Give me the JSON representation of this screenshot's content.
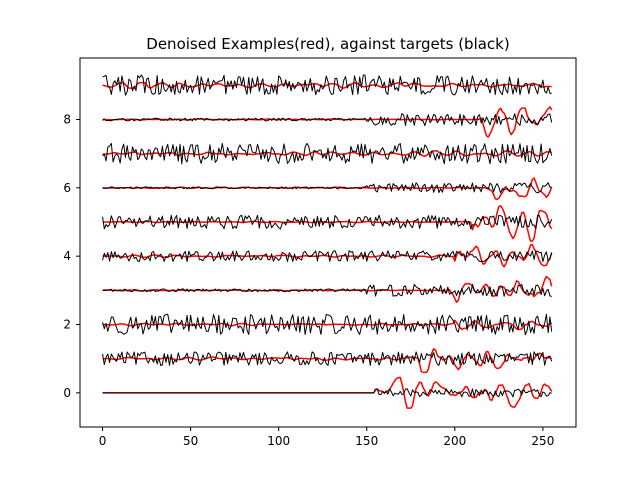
{
  "chart_data": {
    "type": "line",
    "title": "Denoised Examples(red), against targets (black)",
    "xlabel": "",
    "ylabel": "",
    "xlim": [
      -12.8,
      268.8
    ],
    "ylim": [
      -1.0,
      9.8
    ],
    "x_ticks": [
      0,
      50,
      100,
      150,
      200,
      250
    ],
    "y_ticks": [
      0,
      2,
      4,
      6,
      8
    ],
    "n_points": 256,
    "grid": false,
    "colors": {
      "denoised": "#ff0000",
      "target": "#000000"
    },
    "series": [
      {
        "role": "denoised",
        "offset": 0,
        "noise_start": 155,
        "amplitude_early": 0.0,
        "amplitude_late": 0.28
      },
      {
        "role": "target",
        "offset": 0,
        "noise_start": 155,
        "amplitude_early": 0.0,
        "amplitude_late": 0.12
      },
      {
        "role": "denoised",
        "offset": 1,
        "noise_start": 180,
        "amplitude_early": 0.03,
        "amplitude_late": 0.25
      },
      {
        "role": "target",
        "offset": 1,
        "noise_start": 0,
        "amplitude_early": 0.14,
        "amplitude_late": 0.2
      },
      {
        "role": "denoised",
        "offset": 2,
        "noise_start": 200,
        "amplitude_early": 0.02,
        "amplitude_late": 0.1
      },
      {
        "role": "target",
        "offset": 2,
        "noise_start": 0,
        "amplitude_early": 0.3,
        "amplitude_late": 0.3
      },
      {
        "role": "denoised",
        "offset": 3,
        "noise_start": 195,
        "amplitude_early": 0.01,
        "amplitude_late": 0.28
      },
      {
        "role": "target",
        "offset": 3,
        "noise_start": 150,
        "amplitude_early": 0.04,
        "amplitude_late": 0.18
      },
      {
        "role": "denoised",
        "offset": 4,
        "noise_start": 200,
        "amplitude_early": 0.02,
        "amplitude_late": 0.25
      },
      {
        "role": "target",
        "offset": 4,
        "noise_start": 0,
        "amplitude_early": 0.14,
        "amplitude_late": 0.16
      },
      {
        "role": "denoised",
        "offset": 5,
        "noise_start": 210,
        "amplitude_early": 0.01,
        "amplitude_late": 0.35
      },
      {
        "role": "target",
        "offset": 5,
        "noise_start": 0,
        "amplitude_early": 0.07,
        "amplitude_late": 0.2
      },
      {
        "role": "denoised",
        "offset": 6,
        "noise_start": 220,
        "amplitude_early": 0.01,
        "amplitude_late": 0.3
      },
      {
        "role": "target",
        "offset": 6,
        "noise_start": 150,
        "amplitude_early": 0.03,
        "amplitude_late": 0.15
      },
      {
        "role": "denoised",
        "offset": 7,
        "noise_start": 180,
        "amplitude_early": 0.03,
        "amplitude_late": 0.05
      },
      {
        "role": "target",
        "offset": 7,
        "noise_start": 0,
        "amplitude_early": 0.33,
        "amplitude_late": 0.3
      },
      {
        "role": "denoised",
        "offset": 8,
        "noise_start": 215,
        "amplitude_early": 0.01,
        "amplitude_late": 0.32
      },
      {
        "role": "target",
        "offset": 8,
        "noise_start": 150,
        "amplitude_early": 0.04,
        "amplitude_late": 0.18
      },
      {
        "role": "denoised",
        "offset": 9,
        "noise_start": 0,
        "amplitude_early": 0.05,
        "amplitude_late": 0.05
      },
      {
        "role": "target",
        "offset": 9,
        "noise_start": 0,
        "amplitude_early": 0.3,
        "amplitude_late": 0.3
      }
    ]
  }
}
